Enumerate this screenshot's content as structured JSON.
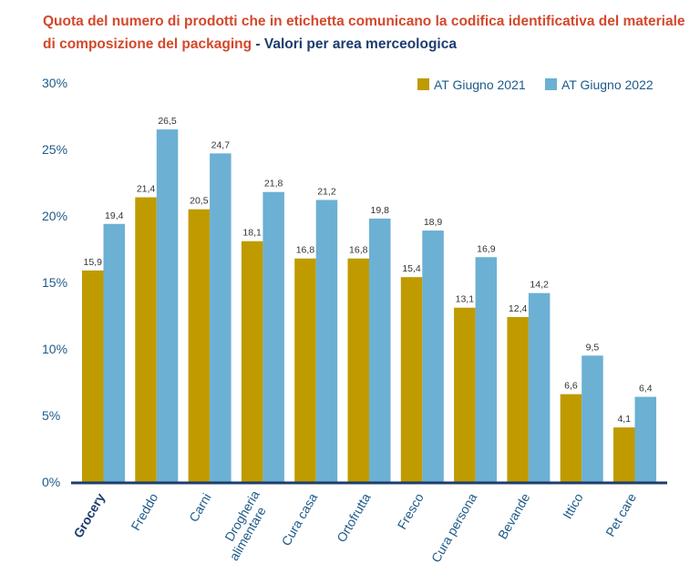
{
  "title": {
    "main": "Quota del numero di prodotti che in etichetta comunicano la codifica identificativa del materiale di composizione del packaging",
    "separator": " - ",
    "subtitle": "Valori per area merceologica"
  },
  "colors": {
    "series_2021": "#bf9b00",
    "series_2022": "#6cb0d3",
    "axis": "#1d3d6e"
  },
  "chart_data": {
    "type": "bar",
    "categories": [
      "Grocery",
      "Freddo",
      "Carni",
      "Drogheria\nalimentare",
      "Cura casa",
      "Ortofrutta",
      "Fresco",
      "Cura persona",
      "Bevande",
      "Ittico",
      "Pet care"
    ],
    "highlighted_category": "Grocery",
    "series": [
      {
        "name": "AT Giugno 2021",
        "values": [
          15.9,
          21.4,
          20.5,
          18.1,
          16.8,
          16.8,
          15.4,
          13.1,
          12.4,
          6.6,
          4.1
        ],
        "labels": [
          "15,9",
          "21,4",
          "20,5",
          "18,1",
          "16,8",
          "16,8",
          "15,4",
          "13,1",
          "12,4",
          "6,6",
          "4,1"
        ]
      },
      {
        "name": "AT Giugno 2022",
        "values": [
          19.4,
          26.5,
          24.7,
          21.8,
          21.2,
          19.8,
          18.9,
          16.9,
          14.2,
          9.5,
          6.4
        ],
        "labels": [
          "19,4",
          "26,5",
          "24,7",
          "21,8",
          "21,2",
          "19,8",
          "18,9",
          "16,9",
          "14,2",
          "9,5",
          "6,4"
        ]
      }
    ],
    "ylim": [
      0,
      30
    ],
    "yticks": [
      0,
      5,
      10,
      15,
      20,
      25,
      30
    ],
    "ytick_labels": [
      "0%",
      "5%",
      "10%",
      "15%",
      "20%",
      "25%",
      "30%"
    ],
    "grid": false,
    "legend_position": "top-right"
  }
}
